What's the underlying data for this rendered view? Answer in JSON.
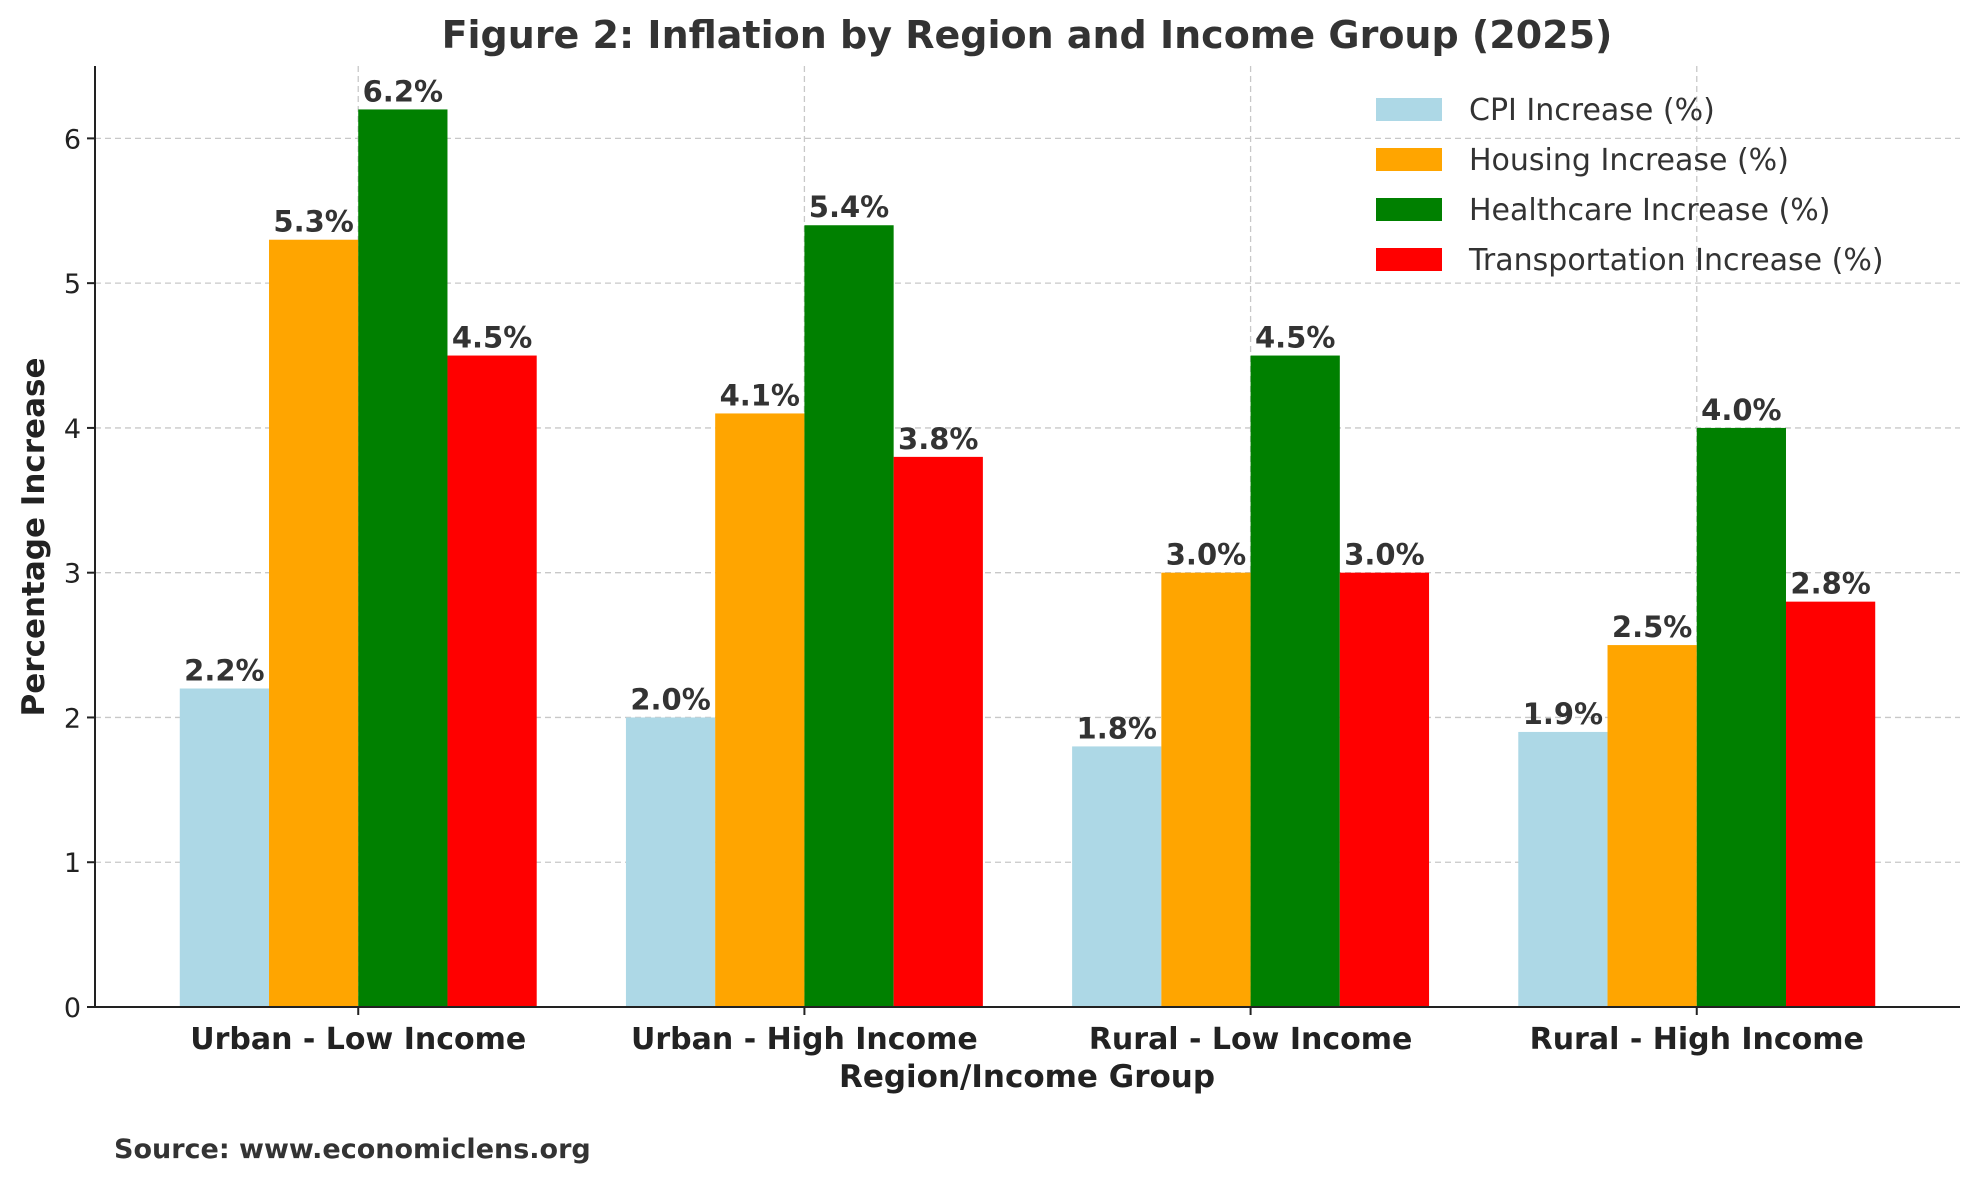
{
  "chart_data": {
    "type": "bar",
    "title": "Figure 2: Inflation by Region and Income Group (2025)",
    "xlabel": "Region/Income Group",
    "ylabel": "Percentage Increase",
    "categories": [
      "Urban - Low Income",
      "Urban - High Income",
      "Rural - Low Income",
      "Rural - High Income"
    ],
    "series": [
      {
        "name": "CPI Increase (%)",
        "color": "#add8e6",
        "values": [
          2.2,
          2.0,
          1.8,
          1.9
        ]
      },
      {
        "name": "Housing Increase (%)",
        "color": "#ffa500",
        "values": [
          5.3,
          4.1,
          3.0,
          2.5
        ]
      },
      {
        "name": "Healthcare Increase (%)",
        "color": "#008000",
        "values": [
          6.2,
          5.4,
          4.5,
          4.0
        ]
      },
      {
        "name": "Transportation Increase (%)",
        "color": "#ff0000",
        "values": [
          4.5,
          3.8,
          3.0,
          2.8
        ]
      }
    ],
    "ylim": [
      0,
      6.5
    ],
    "yticks": [
      0,
      1,
      2,
      3,
      4,
      5,
      6
    ],
    "grid": true,
    "legend": "top-right",
    "label_format": "{v}%",
    "source": "Source: www.economiclens.org"
  }
}
